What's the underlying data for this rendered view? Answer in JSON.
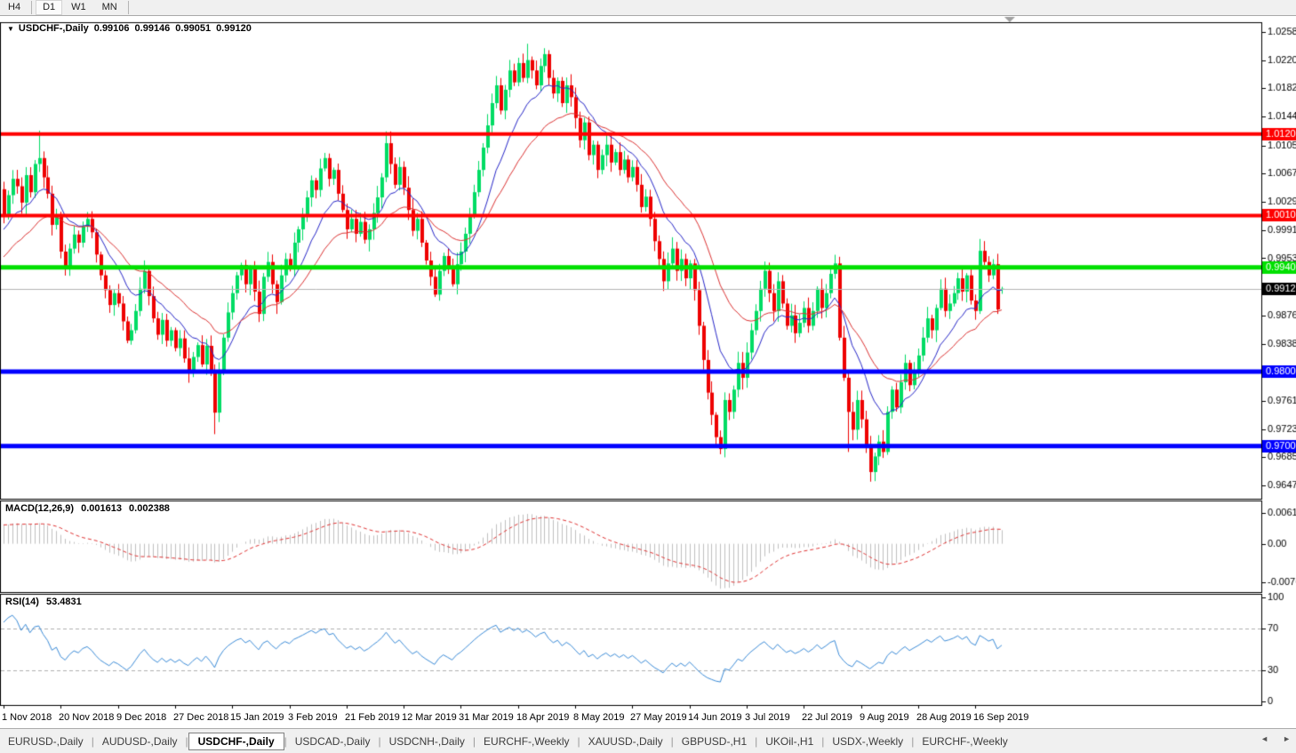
{
  "toolbar": {
    "buttons": [
      {
        "label": "H4",
        "active": false
      },
      {
        "label": "D1",
        "active": true
      },
      {
        "label": "W1",
        "active": false
      },
      {
        "label": "MN",
        "active": false
      }
    ]
  },
  "chart": {
    "symbol_caption": "USDCHF-,Daily",
    "open": "0.99106",
    "high": "0.99146",
    "low": "0.99051",
    "close": "0.99120"
  },
  "indicators": {
    "macd_label": "MACD(12,26,9)",
    "macd_value": "0.001613",
    "macd_signal": "0.002388",
    "rsi_label": "RSI(14)",
    "rsi_value": "53.4831"
  },
  "tabs": {
    "items": [
      "EURUSD-,Daily",
      "AUDUSD-,Daily",
      "USDCHF-,Daily",
      "USDCAD-,Daily",
      "USDCNH-,Daily",
      "EURCHF-,Weekly",
      "XAUUSD-,Daily",
      "GBPUSD-,H1",
      "UKOil-,H1",
      "USDX-,Weekly",
      "EURCHF-,Weekly"
    ],
    "active_index": 2,
    "nav_left": "◄",
    "nav_right": "►"
  },
  "chart_data": {
    "type": "candlestick",
    "symbol": "USDCHF",
    "timeframe": "Daily",
    "spacing": 4.947,
    "first_open": 1.0046,
    "price_range": [
      0.9629,
      1.0271
    ],
    "macd_range": [
      -0.0095,
      0.0085
    ],
    "rsi_range": [
      -3,
      103
    ],
    "current_price": {
      "value": 0.9912,
      "label": "0.99120",
      "line_color": "#b4b4b4",
      "tag_bg": "#000000"
    },
    "levels": [
      {
        "price": 1.01205,
        "label": "1.01205",
        "color": "#ff0000",
        "width": 4
      },
      {
        "price": 1.00106,
        "label": "1.00106",
        "color": "#ff0000",
        "width": 4
      },
      {
        "price": 0.99406,
        "label": "0.99406",
        "color": "#00e000",
        "width": 5
      },
      {
        "price": 0.98004,
        "label": "0.98004",
        "color": "#0000ff",
        "width": 5
      },
      {
        "price": 0.97001,
        "label": "0.97001",
        "color": "#0000ff",
        "width": 5
      }
    ],
    "y_ticks": [
      {
        "v": 1.0258,
        "label": "1.02580"
      },
      {
        "v": 1.022,
        "label": "1.02200"
      },
      {
        "v": 1.0182,
        "label": "1.01820"
      },
      {
        "v": 1.0144,
        "label": "1.01440"
      },
      {
        "v": 1.0105,
        "label": "1.01050"
      },
      {
        "v": 1.0067,
        "label": "1.00670"
      },
      {
        "v": 1.0029,
        "label": "1.00290"
      },
      {
        "v": 0.9991,
        "label": "0.99910"
      },
      {
        "v": 0.9953,
        "label": "0.99530"
      },
      {
        "v": 0.9876,
        "label": "0.98760"
      },
      {
        "v": 0.9838,
        "label": "0.98380"
      },
      {
        "v": 0.9761,
        "label": "0.97610"
      },
      {
        "v": 0.9723,
        "label": "0.97230"
      },
      {
        "v": 0.9685,
        "label": "0.96850"
      },
      {
        "v": 0.9647,
        "label": "0.96470"
      }
    ],
    "macd_ticks": [
      {
        "v": 0.00613,
        "label": "0.00613"
      },
      {
        "v": 0.0,
        "label": "0.00"
      },
      {
        "v": -0.00761,
        "label": "-0.00761"
      }
    ],
    "rsi_ticks": [
      {
        "v": 100,
        "label": "100",
        "dashed": false
      },
      {
        "v": 70,
        "label": "70",
        "dashed": true
      },
      {
        "v": 30,
        "label": "30",
        "dashed": true
      },
      {
        "v": 0,
        "label": "0",
        "dashed": false
      }
    ],
    "x_labels": [
      {
        "i": 0,
        "label": "1 Nov 2018"
      },
      {
        "i": 13,
        "label": "20 Nov 2018"
      },
      {
        "i": 26,
        "label": "9 Dec 2018"
      },
      {
        "i": 39,
        "label": "27 Dec 2018"
      },
      {
        "i": 52,
        "label": "15 Jan 2019"
      },
      {
        "i": 65,
        "label": "3 Feb 2019"
      },
      {
        "i": 78,
        "label": "21 Feb 2019"
      },
      {
        "i": 91,
        "label": "12 Mar 2019"
      },
      {
        "i": 104,
        "label": "31 Mar 2019"
      },
      {
        "i": 117,
        "label": "18 Apr 2019"
      },
      {
        "i": 130,
        "label": "8 May 2019"
      },
      {
        "i": 143,
        "label": "27 May 2019"
      },
      {
        "i": 156,
        "label": "14 Jun 2019"
      },
      {
        "i": 169,
        "label": "3 Jul 2019"
      },
      {
        "i": 182,
        "label": "22 Jul 2019"
      },
      {
        "i": 195,
        "label": "9 Aug 2019"
      },
      {
        "i": 208,
        "label": "28 Aug 2019"
      },
      {
        "i": 221,
        "label": "16 Sep 2019"
      }
    ],
    "params": {
      "ema_fast": 12,
      "ema_slow": 26,
      "signal": 9,
      "rsi": 14
    },
    "colors": {
      "up": "#00dc64",
      "down": "#ee0000",
      "ma_fast": "#2626c8",
      "ma_slow": "#dc3232",
      "macd_hist": "#c0c0c0",
      "macd_signal": "#e03232",
      "rsi_line": "#3c8cd8",
      "border": "#000000",
      "grid_dash": "#b0b0b0",
      "shift_marker": "#a0a0a0"
    },
    "preroll_closes": [
      0.982,
      0.9832,
      0.9828,
      0.9845,
      0.9856,
      0.985,
      0.9868,
      0.988,
      0.9875,
      0.9892,
      0.9905,
      0.9898,
      0.9915,
      0.9928,
      0.9922,
      0.9938,
      0.995,
      0.9944,
      0.996,
      0.9972,
      0.9965,
      0.998,
      0.9992,
      0.9985,
      0.9998,
      1.001,
      1.0004,
      1.0018,
      1.0012,
      1.0005
    ],
    "closes": [
      1.001,
      1.0038,
      1.006,
      1.005,
      1.0028,
      1.0065,
      1.0042,
      1.008,
      1.0088,
      1.0062,
      1.004,
      0.9998,
      1.0012,
      0.9962,
      0.994,
      0.9966,
      0.9985,
      0.9974,
      0.9996,
      1.0006,
      0.9988,
      0.9958,
      0.993,
      0.991,
      0.989,
      0.9906,
      0.9892,
      0.9868,
      0.9842,
      0.9856,
      0.9882,
      0.9912,
      0.9936,
      0.9902,
      0.9872,
      0.985,
      0.987,
      0.9842,
      0.9856,
      0.9832,
      0.9845,
      0.9818,
      0.98,
      0.982,
      0.9836,
      0.981,
      0.9835,
      0.98,
      0.9745,
      0.9802,
      0.9846,
      0.988,
      0.9906,
      0.993,
      0.9944,
      0.9918,
      0.9938,
      0.9908,
      0.9878,
      0.9928,
      0.9948,
      0.9918,
      0.9894,
      0.993,
      0.9952,
      0.994,
      0.9974,
      0.9992,
      1.0012,
      1.0035,
      1.0058,
      1.0045,
      1.0074,
      1.0088,
      1.006,
      1.0072,
      1.004,
      1.0018,
      0.9992,
      1.0006,
      0.9986,
      1.0002,
      0.9978,
      0.9992,
      1.0014,
      1.0035,
      1.0062,
      1.0108,
      1.008,
      1.0052,
      1.0076,
      1.0048,
      1.0018,
      0.999,
      1.0006,
      0.9974,
      0.995,
      0.9928,
      0.9904,
      0.9936,
      0.9956,
      0.9938,
      0.9918,
      0.9945,
      0.9962,
      0.9986,
      1.0012,
      1.0042,
      1.0072,
      1.0102,
      1.0132,
      1.0162,
      1.0186,
      1.0152,
      1.018,
      1.0206,
      1.019,
      1.0216,
      1.0196,
      1.022,
      1.0206,
      1.0186,
      1.0212,
      1.0228,
      1.0196,
      1.0175,
      1.0192,
      1.0162,
      1.0186,
      1.017,
      1.0142,
      1.0112,
      1.0136,
      1.0092,
      1.0106,
      1.0072,
      1.0092,
      1.0106,
      1.0082,
      1.0096,
      1.0072,
      1.0086,
      1.0062,
      1.0076,
      1.0052,
      1.0022,
      1.0036,
      1.0006,
      0.9976,
      0.9952,
      0.9922,
      0.9946,
      0.9966,
      0.9936,
      0.9952,
      0.9926,
      0.9946,
      0.991,
      0.9862,
      0.9816,
      0.9772,
      0.9742,
      0.9712,
      0.9696,
      0.9762,
      0.9746,
      0.9776,
      0.9812,
      0.9792,
      0.9826,
      0.9856,
      0.9882,
      0.9912,
      0.9936,
      0.9906,
      0.9882,
      0.9922,
      0.9892,
      0.9862,
      0.9876,
      0.9852,
      0.9866,
      0.9886,
      0.9862,
      0.9882,
      0.9912,
      0.9886,
      0.9906,
      0.9932,
      0.9946,
      0.9846,
      0.9792,
      0.9746,
      0.9722,
      0.9762,
      0.9736,
      0.9702,
      0.9665,
      0.9686,
      0.9706,
      0.9692,
      0.9746,
      0.9776,
      0.9752,
      0.9786,
      0.9812,
      0.9782,
      0.9802,
      0.9822,
      0.9846,
      0.9872,
      0.9856,
      0.9886,
      0.9912,
      0.9882,
      0.9892,
      0.9906,
      0.9926,
      0.9908,
      0.993,
      0.9896,
      0.9882,
      0.9963,
      0.9948,
      0.993,
      0.9945,
      0.9884,
      0.9912
    ],
    "wick_overrides": {
      "8": {
        "h": 1.0125
      },
      "48": {
        "l": 0.9716
      },
      "87": {
        "h": 1.0124
      },
      "119": {
        "h": 1.0242
      },
      "123": {
        "h": 1.0236
      },
      "163": {
        "l": 0.9689
      },
      "192": {
        "l": 0.9692
      },
      "197": {
        "l": 0.9652
      },
      "222": {
        "h": 0.9979,
        "l": 0.9878
      },
      "226": {
        "l": 0.9878
      },
      "227": {
        "o": 0.99106,
        "h": 0.99146,
        "l": 0.99051
      }
    }
  }
}
